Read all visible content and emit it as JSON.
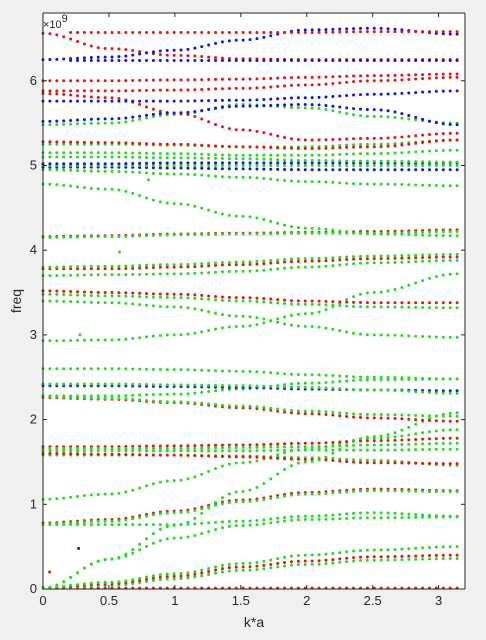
{
  "chart_data": {
    "type": "scatter",
    "xlabel": "k*a",
    "ylabel": "freq",
    "y_exponent_label": "×10",
    "y_exponent_power": "9",
    "xlim": [
      0,
      3.2
    ],
    "ylim": [
      0,
      6.8
    ],
    "x_ticks": [
      0,
      0.5,
      1,
      1.5,
      2,
      2.5,
      3
    ],
    "x_tick_labels": [
      "0",
      "0.5",
      "1",
      "1.5",
      "2",
      "2.5",
      "3"
    ],
    "y_ticks": [
      0,
      1,
      2,
      3,
      4,
      5,
      6
    ],
    "y_tick_labels": [
      "0",
      "1",
      "2",
      "3",
      "4",
      "5",
      "6"
    ],
    "grid": false,
    "colors": {
      "red": "#ee1111",
      "blue": "#1111ee",
      "green": "#22dd22"
    },
    "k_range": [
      0,
      3.14
    ],
    "bands": [
      {
        "color": "red",
        "k": [
          0,
          0.5,
          1,
          1.5,
          2,
          2.5,
          3.14
        ],
        "f": [
          0.01,
          0.01,
          0.01,
          0.01,
          0.01,
          0.01,
          0.01
        ]
      },
      {
        "color": "green",
        "k": [
          0,
          0.5,
          1,
          1.5,
          2,
          2.5,
          3.14
        ],
        "f": [
          0.01,
          0.04,
          0.12,
          0.22,
          0.29,
          0.34,
          0.36
        ]
      },
      {
        "color": "red",
        "k": [
          0,
          0.5,
          1,
          1.5,
          2,
          2.5,
          3.14
        ],
        "f": [
          0.01,
          0.06,
          0.15,
          0.26,
          0.33,
          0.38,
          0.4
        ]
      },
      {
        "color": "green",
        "k": [
          0,
          0.5,
          1,
          1.5,
          2,
          2.5,
          3.14
        ],
        "f": [
          0.02,
          0.08,
          0.18,
          0.3,
          0.4,
          0.46,
          0.5
        ]
      },
      {
        "color": "green",
        "k": [
          0,
          0.5,
          1,
          1.5,
          2,
          2.5,
          3.14
        ],
        "f": [
          0.01,
          0.35,
          0.6,
          0.75,
          0.82,
          0.84,
          0.85
        ]
      },
      {
        "color": "green",
        "k": [
          0,
          0.5,
          1,
          1.5,
          2,
          2.5,
          3.14
        ],
        "f": [
          0.76,
          0.76,
          0.76,
          0.8,
          0.86,
          0.9,
          0.86
        ]
      },
      {
        "color": "red",
        "k": [
          0,
          0.5,
          1,
          1.5,
          2,
          2.5,
          3.14
        ],
        "f": [
          0.78,
          0.82,
          0.92,
          1.05,
          1.14,
          1.18,
          1.16
        ]
      },
      {
        "color": "green",
        "k": [
          0,
          0.5,
          1,
          1.5,
          2,
          2.5,
          3.14
        ],
        "f": [
          0.77,
          0.8,
          0.9,
          1.03,
          1.12,
          1.16,
          1.15
        ]
      },
      {
        "color": "green",
        "k": [
          0,
          0.5,
          1,
          1.5,
          2,
          2.5,
          3.14
        ],
        "f": [
          1.06,
          1.12,
          1.28,
          1.49,
          1.65,
          1.78,
          1.88
        ]
      },
      {
        "color": "red",
        "k": [
          0,
          0.5,
          1,
          1.5,
          2,
          2.5,
          3.14
        ],
        "f": [
          1.68,
          1.68,
          1.69,
          1.7,
          1.72,
          1.75,
          1.78
        ]
      },
      {
        "color": "green",
        "k": [
          0,
          0.5,
          1,
          1.5,
          2,
          2.5,
          3.14
        ],
        "f": [
          1.66,
          1.66,
          1.66,
          1.67,
          1.68,
          1.7,
          1.72
        ]
      },
      {
        "color": "green",
        "k": [
          0,
          0.5,
          1,
          1.5,
          2,
          2.5,
          3.14
        ],
        "f": [
          1.63,
          1.63,
          1.63,
          1.63,
          1.64,
          1.64,
          1.65
        ]
      },
      {
        "color": "green",
        "k": [
          0,
          0.5,
          1,
          1.5,
          2,
          2.5,
          3.14
        ],
        "f": [
          1.58,
          1.58,
          1.58,
          1.57,
          1.55,
          1.52,
          1.46
        ]
      },
      {
        "color": "red",
        "k": [
          0,
          0.5,
          1,
          1.5,
          2,
          2.5,
          3.14
        ],
        "f": [
          1.6,
          1.59,
          1.58,
          1.56,
          1.53,
          1.49,
          1.48
        ]
      },
      {
        "color": "green",
        "k": [
          0,
          0.5,
          1,
          1.5,
          2,
          2.5,
          3.14
        ],
        "f": [
          0.01,
          0.35,
          0.75,
          1.15,
          1.5,
          1.8,
          2.08
        ]
      },
      {
        "color": "green",
        "k": [
          0,
          0.5,
          1,
          1.5,
          2,
          2.5,
          3.14
        ],
        "f": [
          2.28,
          2.28,
          2.3,
          2.36,
          2.43,
          2.47,
          2.48
        ]
      },
      {
        "color": "red",
        "k": [
          0,
          0.5,
          1,
          1.5,
          2,
          2.5,
          3.14
        ],
        "f": [
          2.26,
          2.24,
          2.2,
          2.14,
          2.07,
          2.02,
          1.98
        ]
      },
      {
        "color": "green",
        "k": [
          0,
          0.5,
          1,
          1.5,
          2,
          2.5,
          3.14
        ],
        "f": [
          2.27,
          2.25,
          2.21,
          2.16,
          2.1,
          2.06,
          2.04
        ]
      },
      {
        "color": "blue",
        "k": [
          0,
          0.5,
          1,
          1.5,
          2,
          2.5,
          3.14
        ],
        "f": [
          2.4,
          2.4,
          2.39,
          2.38,
          2.36,
          2.35,
          2.34
        ]
      },
      {
        "color": "green",
        "k": [
          0,
          0.5,
          1,
          1.5,
          2,
          2.5,
          3.14
        ],
        "f": [
          2.42,
          2.42,
          2.41,
          2.4,
          2.38,
          2.35,
          2.31
        ]
      },
      {
        "color": "green",
        "k": [
          0,
          0.5,
          1,
          1.5,
          2,
          2.5,
          3.14
        ],
        "f": [
          2.6,
          2.6,
          2.59,
          2.57,
          2.53,
          2.5,
          2.48
        ]
      },
      {
        "color": "green",
        "k": [
          0,
          0.5,
          1,
          1.5,
          2,
          2.5,
          3.14
        ],
        "f": [
          2.93,
          2.94,
          3.0,
          3.1,
          3.25,
          3.5,
          3.72
        ]
      },
      {
        "color": "green",
        "k": [
          0,
          0.5,
          1,
          1.5,
          2,
          2.5,
          3.14
        ],
        "f": [
          3.4,
          3.38,
          3.33,
          3.22,
          3.1,
          3.0,
          2.97
        ]
      },
      {
        "color": "red",
        "k": [
          0,
          0.5,
          1,
          1.5,
          2,
          2.5,
          3.14
        ],
        "f": [
          3.52,
          3.5,
          3.48,
          3.44,
          3.4,
          3.38,
          3.38
        ]
      },
      {
        "color": "green",
        "k": [
          0,
          0.5,
          1,
          1.5,
          2,
          2.5,
          3.14
        ],
        "f": [
          3.48,
          3.46,
          3.44,
          3.4,
          3.36,
          3.33,
          3.32
        ]
      },
      {
        "color": "green",
        "k": [
          0,
          0.5,
          1,
          1.5,
          2,
          2.5,
          3.14
        ],
        "f": [
          3.7,
          3.71,
          3.72,
          3.75,
          3.8,
          3.85,
          3.88
        ]
      },
      {
        "color": "red",
        "k": [
          0,
          0.5,
          1,
          1.5,
          2,
          2.5,
          3.14
        ],
        "f": [
          3.78,
          3.78,
          3.8,
          3.83,
          3.87,
          3.9,
          3.92
        ]
      },
      {
        "color": "green",
        "k": [
          0,
          0.5,
          1,
          1.5,
          2,
          2.5,
          3.14
        ],
        "f": [
          3.8,
          3.81,
          3.83,
          3.86,
          3.9,
          3.93,
          3.95
        ]
      },
      {
        "color": "red",
        "k": [
          0,
          0.5,
          1,
          1.5,
          2,
          2.5,
          3.14
        ],
        "f": [
          4.16,
          4.17,
          4.19,
          4.2,
          4.21,
          4.22,
          4.24
        ]
      },
      {
        "color": "green",
        "k": [
          0,
          0.5,
          1,
          1.5,
          2,
          2.5,
          3.14
        ],
        "f": [
          4.15,
          4.16,
          4.18,
          4.19,
          4.2,
          4.2,
          4.22
        ]
      },
      {
        "color": "green",
        "k": [
          0,
          0.5,
          1,
          1.5,
          2,
          2.5,
          3.14
        ],
        "f": [
          4.78,
          4.72,
          4.55,
          4.4,
          4.26,
          4.19,
          4.17
        ]
      },
      {
        "color": "green",
        "k": [
          0,
          0.5,
          1,
          1.5,
          2,
          2.5,
          3.14
        ],
        "f": [
          4.95,
          4.93,
          4.9,
          4.86,
          4.81,
          4.78,
          4.76
        ]
      },
      {
        "color": "blue",
        "k": [
          0,
          0.5,
          1,
          1.5,
          2,
          2.5,
          3.14
        ],
        "f": [
          4.98,
          4.98,
          4.97,
          4.96,
          4.95,
          4.95,
          4.95
        ]
      },
      {
        "color": "green",
        "k": [
          0,
          0.5,
          1,
          1.5,
          2,
          2.5,
          3.14
        ],
        "f": [
          5.0,
          5.0,
          5.0,
          5.0,
          5.0,
          5.0,
          5.0
        ]
      },
      {
        "color": "blue",
        "k": [
          0,
          0.5,
          1,
          1.5,
          2,
          2.5,
          3.14
        ],
        "f": [
          5.02,
          5.02,
          5.03,
          5.03,
          5.03,
          5.03,
          5.03
        ]
      },
      {
        "color": "green",
        "k": [
          0,
          0.5,
          1,
          1.5,
          2,
          2.5,
          3.14
        ],
        "f": [
          5.1,
          5.1,
          5.09,
          5.08,
          5.06,
          5.05,
          5.04
        ]
      },
      {
        "color": "green",
        "k": [
          0,
          0.5,
          1,
          1.5,
          2,
          2.5,
          3.14
        ],
        "f": [
          5.15,
          5.15,
          5.14,
          5.12,
          5.12,
          5.14,
          5.18
        ]
      },
      {
        "color": "green",
        "k": [
          0,
          0.5,
          1,
          1.5,
          2,
          2.5,
          3.14
        ],
        "f": [
          5.25,
          5.25,
          5.24,
          5.22,
          5.22,
          5.25,
          5.3
        ]
      },
      {
        "color": "red",
        "k": [
          0,
          0.5,
          1,
          1.5,
          2,
          2.5,
          3.14
        ],
        "f": [
          5.28,
          5.27,
          5.25,
          5.22,
          5.2,
          5.22,
          5.3
        ]
      },
      {
        "color": "green",
        "k": [
          0,
          0.5,
          1,
          1.5,
          2,
          2.5,
          3.14
        ],
        "f": [
          5.48,
          5.5,
          5.6,
          5.72,
          5.68,
          5.58,
          5.5
        ]
      },
      {
        "color": "red",
        "k": [
          0,
          0.5,
          1,
          1.5,
          2,
          2.5,
          3.14
        ],
        "f": [
          5.85,
          5.8,
          5.62,
          5.42,
          5.3,
          5.32,
          5.38
        ]
      },
      {
        "color": "blue",
        "k": [
          0,
          0.5,
          1,
          1.5,
          2,
          2.5,
          3.14
        ],
        "f": [
          5.52,
          5.55,
          5.62,
          5.7,
          5.72,
          5.66,
          5.48
        ]
      },
      {
        "color": "blue",
        "k": [
          0,
          0.5,
          1,
          1.5,
          2,
          2.5,
          3.14
        ],
        "f": [
          5.76,
          5.76,
          5.76,
          5.77,
          5.8,
          5.84,
          5.88
        ]
      },
      {
        "color": "red",
        "k": [
          0,
          0.5,
          1,
          1.5,
          2,
          2.5,
          3.14
        ],
        "f": [
          5.88,
          5.88,
          5.89,
          5.91,
          5.95,
          6.0,
          6.04
        ]
      },
      {
        "color": "red",
        "k": [
          0,
          0.5,
          1,
          1.5,
          2,
          2.5,
          3.14
        ],
        "f": [
          6.0,
          6.0,
          6.01,
          6.02,
          6.04,
          6.06,
          6.08
        ]
      },
      {
        "color": "red",
        "k": [
          0,
          0.5,
          1,
          1.5,
          2,
          2.5,
          3.14
        ],
        "f": [
          6.56,
          6.38,
          6.3,
          6.26,
          6.25,
          6.25,
          6.25
        ]
      },
      {
        "color": "blue",
        "k": [
          0,
          0.5,
          1,
          1.5,
          2,
          2.5,
          3.14
        ],
        "f": [
          6.25,
          6.28,
          6.36,
          6.48,
          6.6,
          6.62,
          6.55
        ]
      },
      {
        "color": "red",
        "k": [
          0.2,
          0.5,
          1,
          1.5,
          2,
          2.5,
          3.14
        ],
        "f": [
          6.57,
          6.57,
          6.57,
          6.57,
          6.57,
          6.58,
          6.58
        ]
      },
      {
        "color": "blue",
        "k": [
          0.2,
          0.5,
          1,
          1.5,
          2,
          2.5,
          3.14
        ],
        "f": [
          6.24,
          6.24,
          6.24,
          6.24,
          6.24,
          6.24,
          6.24
        ]
      }
    ],
    "isolated_points": [
      {
        "color": "blue",
        "k": 0.27,
        "f": 0.48
      },
      {
        "color": "red",
        "k": 0.05,
        "f": 0.2
      },
      {
        "color": "green",
        "k": 0.58,
        "f": 3.98
      },
      {
        "color": "green",
        "k": 0.8,
        "f": 4.83
      },
      {
        "color": "green",
        "k": 0.28,
        "f": 3.0
      }
    ]
  }
}
